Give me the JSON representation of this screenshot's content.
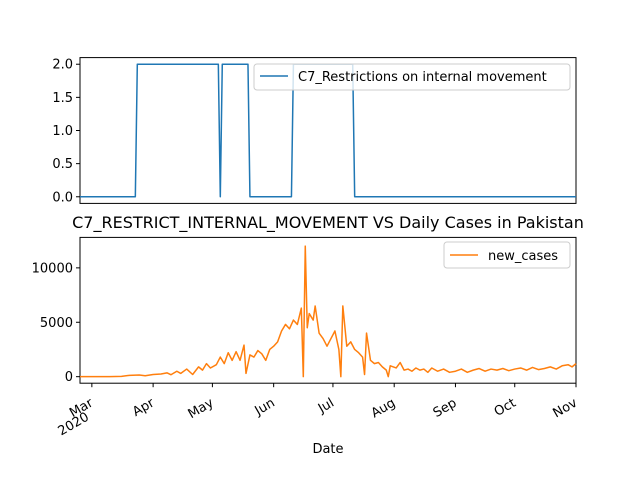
{
  "chart_data": [
    {
      "type": "line",
      "title": "",
      "xlabel": "",
      "ylabel": "",
      "x_range": [
        "2020-02-24",
        "2020-11-01"
      ],
      "ylim": [
        -0.1,
        2.1
      ],
      "yticks": [
        "0.0",
        "0.5",
        "1.0",
        "1.5",
        "2.0"
      ],
      "legend_position": "top-right",
      "grid": false,
      "series": [
        {
          "name": "C7_Restrictions on internal movement",
          "color": "#1f77b4",
          "points": [
            [
              "2020-02-24",
              0
            ],
            [
              "2020-03-23",
              0
            ],
            [
              "2020-03-24",
              2
            ],
            [
              "2020-05-04",
              2
            ],
            [
              "2020-05-05",
              0
            ],
            [
              "2020-05-06",
              2
            ],
            [
              "2020-05-19",
              2
            ],
            [
              "2020-05-20",
              0
            ],
            [
              "2020-06-10",
              0
            ],
            [
              "2020-06-11",
              2
            ],
            [
              "2020-07-11",
              2
            ],
            [
              "2020-07-12",
              0
            ],
            [
              "2020-11-01",
              0
            ]
          ]
        }
      ]
    },
    {
      "type": "line",
      "title": "C7_RESTRICT_INTERNAL_MOVEMENT VS Daily Cases in Pakistan",
      "xlabel": "Date",
      "ylabel": "",
      "x_range": [
        "2020-02-24",
        "2020-11-01"
      ],
      "ylim": [
        -600,
        12800
      ],
      "yticks": [
        "0",
        "5000",
        "10000"
      ],
      "x_ticks": [
        {
          "date": "2020-03-01",
          "label": "Mar",
          "sublabel": "2020"
        },
        {
          "date": "2020-04-01",
          "label": "Apr",
          "sublabel": ""
        },
        {
          "date": "2020-05-01",
          "label": "May",
          "sublabel": ""
        },
        {
          "date": "2020-06-01",
          "label": "Jun",
          "sublabel": ""
        },
        {
          "date": "2020-07-01",
          "label": "Jul",
          "sublabel": ""
        },
        {
          "date": "2020-08-01",
          "label": "Aug",
          "sublabel": ""
        },
        {
          "date": "2020-09-01",
          "label": "Sep",
          "sublabel": ""
        },
        {
          "date": "2020-10-01",
          "label": "Oct",
          "sublabel": ""
        },
        {
          "date": "2020-11-01",
          "label": "Nov",
          "sublabel": ""
        }
      ],
      "legend_position": "top-right",
      "grid": false,
      "series": [
        {
          "name": "new_cases",
          "color": "#ff7f0e",
          "points": [
            [
              "2020-02-24",
              0
            ],
            [
              "2020-03-10",
              5
            ],
            [
              "2020-03-16",
              30
            ],
            [
              "2020-03-20",
              120
            ],
            [
              "2020-03-25",
              150
            ],
            [
              "2020-03-28",
              80
            ],
            [
              "2020-04-01",
              200
            ],
            [
              "2020-04-05",
              250
            ],
            [
              "2020-04-08",
              350
            ],
            [
              "2020-04-10",
              180
            ],
            [
              "2020-04-13",
              500
            ],
            [
              "2020-04-15",
              300
            ],
            [
              "2020-04-18",
              700
            ],
            [
              "2020-04-21",
              200
            ],
            [
              "2020-04-24",
              900
            ],
            [
              "2020-04-26",
              600
            ],
            [
              "2020-04-28",
              1200
            ],
            [
              "2020-04-30",
              800
            ],
            [
              "2020-05-03",
              1100
            ],
            [
              "2020-05-05",
              1800
            ],
            [
              "2020-05-07",
              1200
            ],
            [
              "2020-05-09",
              2200
            ],
            [
              "2020-05-11",
              1500
            ],
            [
              "2020-05-13",
              2300
            ],
            [
              "2020-05-15",
              1500
            ],
            [
              "2020-05-17",
              2900
            ],
            [
              "2020-05-18",
              300
            ],
            [
              "2020-05-20",
              2000
            ],
            [
              "2020-05-22",
              1800
            ],
            [
              "2020-05-24",
              2400
            ],
            [
              "2020-05-26",
              2100
            ],
            [
              "2020-05-28",
              1500
            ],
            [
              "2020-05-30",
              2500
            ],
            [
              "2020-06-01",
              2800
            ],
            [
              "2020-06-03",
              3200
            ],
            [
              "2020-06-05",
              4200
            ],
            [
              "2020-06-07",
              4800
            ],
            [
              "2020-06-09",
              4400
            ],
            [
              "2020-06-11",
              5200
            ],
            [
              "2020-06-13",
              4800
            ],
            [
              "2020-06-15",
              6300
            ],
            [
              "2020-06-16",
              0
            ],
            [
              "2020-06-17",
              12000
            ],
            [
              "2020-06-18",
              4500
            ],
            [
              "2020-06-19",
              5800
            ],
            [
              "2020-06-21",
              5200
            ],
            [
              "2020-06-22",
              6500
            ],
            [
              "2020-06-24",
              4000
            ],
            [
              "2020-06-26",
              3500
            ],
            [
              "2020-06-28",
              2800
            ],
            [
              "2020-06-30",
              3500
            ],
            [
              "2020-07-02",
              4200
            ],
            [
              "2020-07-04",
              2500
            ],
            [
              "2020-07-05",
              0
            ],
            [
              "2020-07-06",
              6500
            ],
            [
              "2020-07-08",
              2800
            ],
            [
              "2020-07-10",
              3200
            ],
            [
              "2020-07-12",
              2500
            ],
            [
              "2020-07-14",
              2200
            ],
            [
              "2020-07-16",
              1800
            ],
            [
              "2020-07-17",
              200
            ],
            [
              "2020-07-18",
              4000
            ],
            [
              "2020-07-20",
              1500
            ],
            [
              "2020-07-22",
              1200
            ],
            [
              "2020-07-24",
              1300
            ],
            [
              "2020-07-26",
              900
            ],
            [
              "2020-07-28",
              600
            ],
            [
              "2020-07-29",
              0
            ],
            [
              "2020-07-30",
              1000
            ],
            [
              "2020-08-02",
              800
            ],
            [
              "2020-08-04",
              1300
            ],
            [
              "2020-08-06",
              600
            ],
            [
              "2020-08-08",
              700
            ],
            [
              "2020-08-10",
              500
            ],
            [
              "2020-08-12",
              800
            ],
            [
              "2020-08-14",
              600
            ],
            [
              "2020-08-16",
              700
            ],
            [
              "2020-08-18",
              400
            ],
            [
              "2020-08-20",
              800
            ],
            [
              "2020-08-23",
              500
            ],
            [
              "2020-08-26",
              700
            ],
            [
              "2020-08-29",
              400
            ],
            [
              "2020-09-01",
              500
            ],
            [
              "2020-09-04",
              700
            ],
            [
              "2020-09-07",
              400
            ],
            [
              "2020-09-10",
              600
            ],
            [
              "2020-09-13",
              750
            ],
            [
              "2020-09-16",
              500
            ],
            [
              "2020-09-19",
              700
            ],
            [
              "2020-09-22",
              600
            ],
            [
              "2020-09-25",
              750
            ],
            [
              "2020-09-28",
              550
            ],
            [
              "2020-10-01",
              700
            ],
            [
              "2020-10-04",
              800
            ],
            [
              "2020-10-07",
              600
            ],
            [
              "2020-10-10",
              850
            ],
            [
              "2020-10-13",
              650
            ],
            [
              "2020-10-16",
              750
            ],
            [
              "2020-10-19",
              900
            ],
            [
              "2020-10-22",
              700
            ],
            [
              "2020-10-25",
              1000
            ],
            [
              "2020-10-28",
              1100
            ],
            [
              "2020-10-30",
              900
            ],
            [
              "2020-11-01",
              1200
            ]
          ]
        }
      ]
    }
  ]
}
